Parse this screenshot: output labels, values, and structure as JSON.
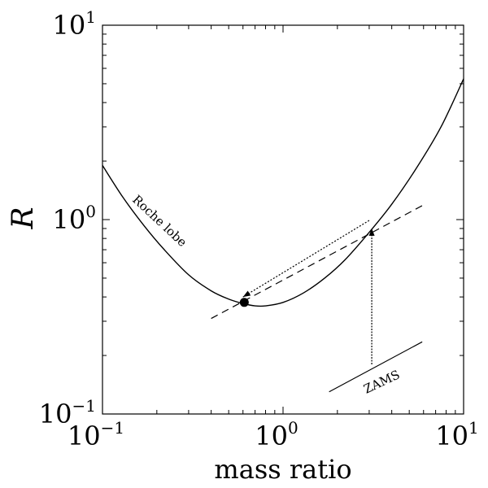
{
  "chart_data": {
    "type": "line",
    "title": "",
    "xlabel": "mass ratio",
    "ylabel": "R",
    "xscale": "log",
    "yscale": "log",
    "xlim": [
      0.1,
      10
    ],
    "ylim": [
      0.1,
      10
    ],
    "grid": false,
    "x_ticks": [
      {
        "value": 0.1,
        "base": "10",
        "exp": "−1"
      },
      {
        "value": 1,
        "base": "10",
        "exp": "0"
      },
      {
        "value": 10,
        "base": "10",
        "exp": "1"
      }
    ],
    "y_ticks": [
      {
        "value": 0.1,
        "base": "10",
        "exp": "−1"
      },
      {
        "value": 1,
        "base": "10",
        "exp": "0"
      },
      {
        "value": 10,
        "base": "10",
        "exp": "1"
      }
    ],
    "series": [
      {
        "name": "",
        "style": "solid",
        "x": [
          0.1,
          0.13,
          0.17,
          0.22,
          0.3,
          0.4,
          0.5,
          0.6,
          0.7,
          0.8,
          1.0,
          1.3,
          1.7,
          2.2,
          3.0,
          4.0,
          5.5,
          7.5,
          10
        ],
        "y": [
          1.9,
          1.3,
          0.93,
          0.7,
          0.52,
          0.43,
          0.39,
          0.37,
          0.36,
          0.36,
          0.375,
          0.42,
          0.5,
          0.62,
          0.86,
          1.2,
          1.85,
          3.0,
          5.3
        ]
      },
      {
        "name": "",
        "style": "dashed",
        "x": [
          0.4,
          5.9
        ],
        "y": [
          0.31,
          1.18
        ]
      },
      {
        "name": "",
        "style": "dotted",
        "x": [
          3.0,
          0.6
        ],
        "y": [
          0.99,
          0.4
        ]
      },
      {
        "name": "",
        "style": "dashdot",
        "x": [
          3.1,
          3.1
        ],
        "y": [
          0.18,
          0.9
        ]
      },
      {
        "name": "",
        "style": "solid",
        "x": [
          1.8,
          5.9
        ],
        "y": [
          0.13,
          0.235
        ]
      }
    ],
    "markers": [
      {
        "x": 0.61,
        "y": 0.375
      }
    ],
    "annotations": [
      {
        "text": "Roche lobe",
        "x": 0.2,
        "y": 0.95,
        "rotation": 43
      },
      {
        "text": "ZAMS",
        "x": 3.6,
        "y": 0.14,
        "rotation": -25
      }
    ]
  }
}
